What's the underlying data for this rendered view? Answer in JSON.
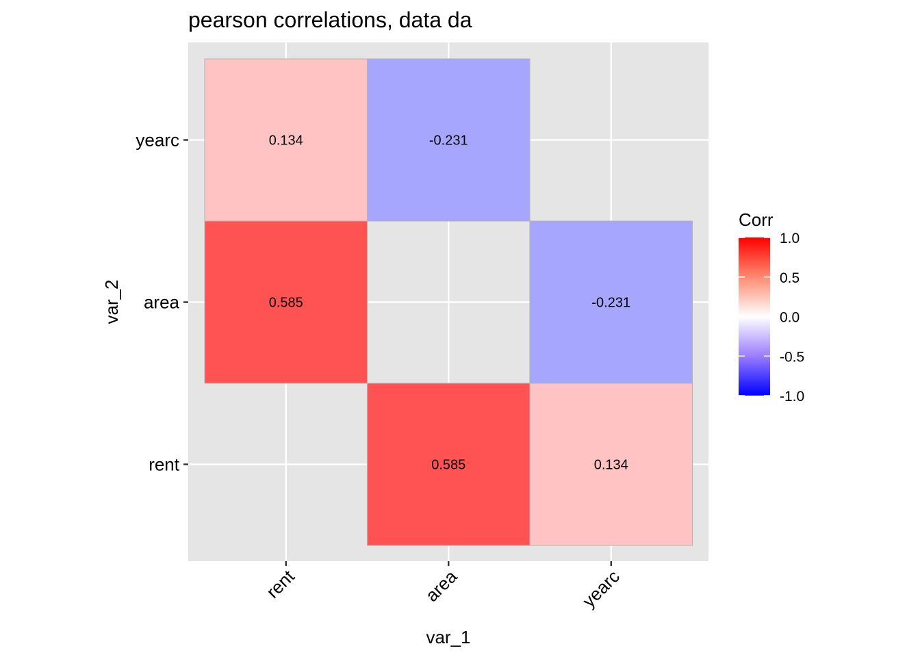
{
  "chart_data": {
    "type": "heatmap",
    "title": "pearson correlations, data da",
    "xlabel": "var_1",
    "ylabel": "var_2",
    "x_categories": [
      "rent",
      "area",
      "yearc"
    ],
    "y_categories": [
      "rent",
      "area",
      "yearc"
    ],
    "cells": [
      {
        "x": "rent",
        "y": "yearc",
        "value": 0.134,
        "label": "0.134"
      },
      {
        "x": "area",
        "y": "yearc",
        "value": -0.231,
        "label": "-0.231"
      },
      {
        "x": "rent",
        "y": "area",
        "value": 0.585,
        "label": "0.585"
      },
      {
        "x": "yearc",
        "y": "area",
        "value": -0.231,
        "label": "-0.231"
      },
      {
        "x": "area",
        "y": "rent",
        "value": 0.585,
        "label": "0.585"
      },
      {
        "x": "yearc",
        "y": "rent",
        "value": 0.134,
        "label": "0.134"
      }
    ],
    "legend": {
      "title": "Corr",
      "range": [
        -1.0,
        1.0
      ],
      "ticks": [
        1.0,
        0.5,
        0.0,
        -0.5,
        -1.0
      ],
      "tick_labels": [
        "1.0",
        "0.5",
        "0.0",
        "-0.5",
        "-1.0"
      ],
      "low_color": "#0000ff",
      "mid_color": "#ffffff",
      "high_color": "#ff0000",
      "placement": "right"
    },
    "panel_background": "#e5e5e5",
    "grid": true,
    "x_tick_rotation": 45
  }
}
